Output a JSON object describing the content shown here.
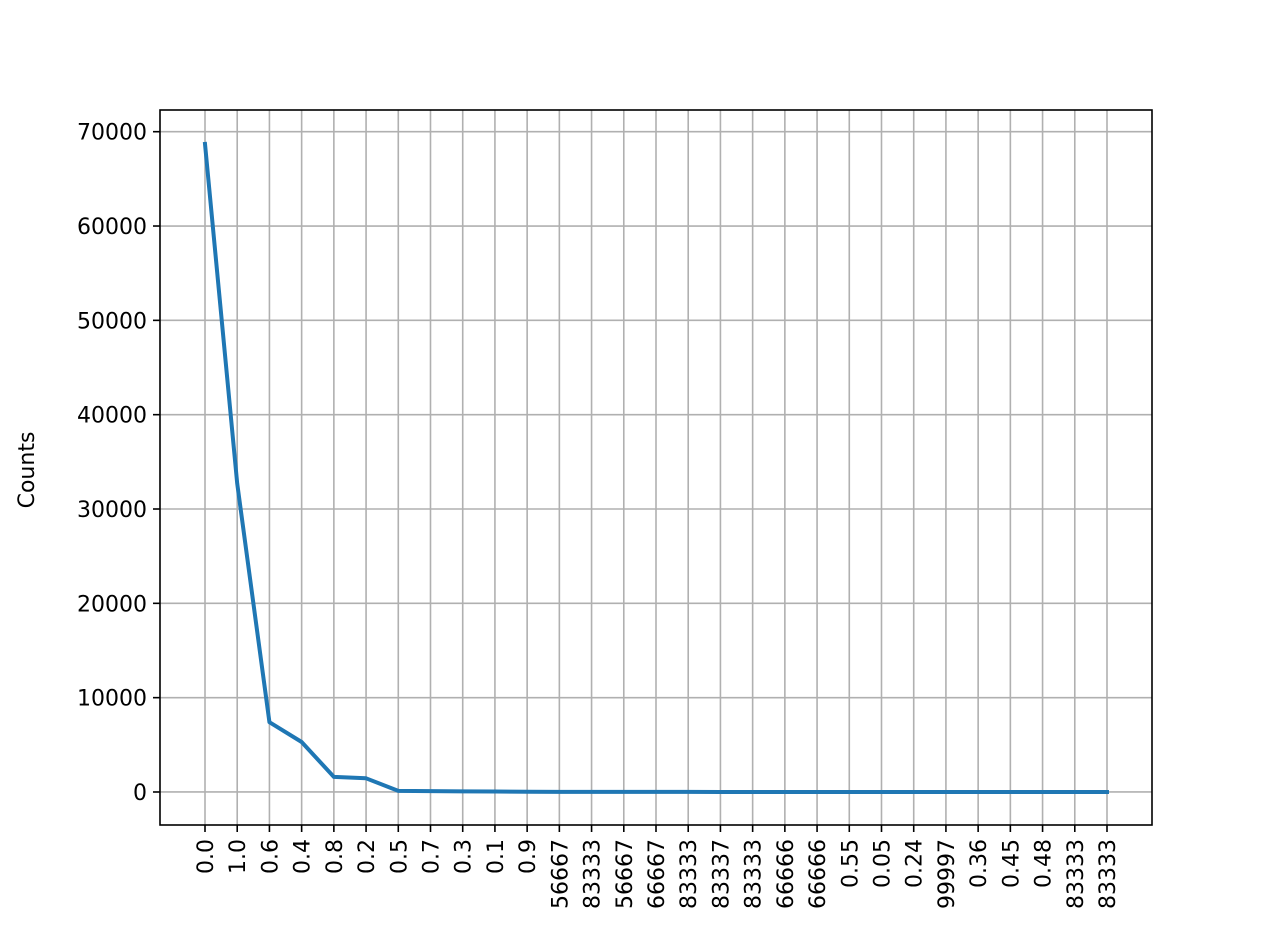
{
  "chart_data": {
    "type": "line",
    "title": "",
    "xlabel": "",
    "ylabel": "Counts",
    "grid": true,
    "ylim": [
      -3500,
      72300
    ],
    "y_ticks": [
      0,
      10000,
      20000,
      30000,
      40000,
      50000,
      60000,
      70000
    ],
    "y_tick_labels": [
      "0",
      "10000",
      "20000",
      "30000",
      "40000",
      "50000",
      "60000",
      "70000"
    ],
    "categories": [
      "0.0",
      "1.0",
      "0.6",
      "0.4",
      "0.8",
      "0.2",
      "0.5",
      "0.7",
      "0.3",
      "0.1",
      "0.9",
      "56667",
      "83333",
      "56667",
      "66667",
      "83333",
      "83337",
      "83333",
      "66666",
      "66666",
      "0.55",
      "0.05",
      "0.24",
      "99997",
      "0.36",
      "0.45",
      "0.48",
      "83333",
      "83333"
    ],
    "series": [
      {
        "color": "#1f77b4",
        "values": [
          68700,
          32700,
          7400,
          5300,
          1600,
          1450,
          120,
          90,
          70,
          50,
          30,
          12,
          10,
          8,
          7,
          6,
          5,
          5,
          4,
          4,
          3,
          3,
          3,
          2,
          2,
          2,
          2,
          1,
          1
        ]
      }
    ],
    "colors": {
      "axes": "#000000",
      "grid": "#b0b0b0",
      "line": "#1f77b4"
    }
  }
}
